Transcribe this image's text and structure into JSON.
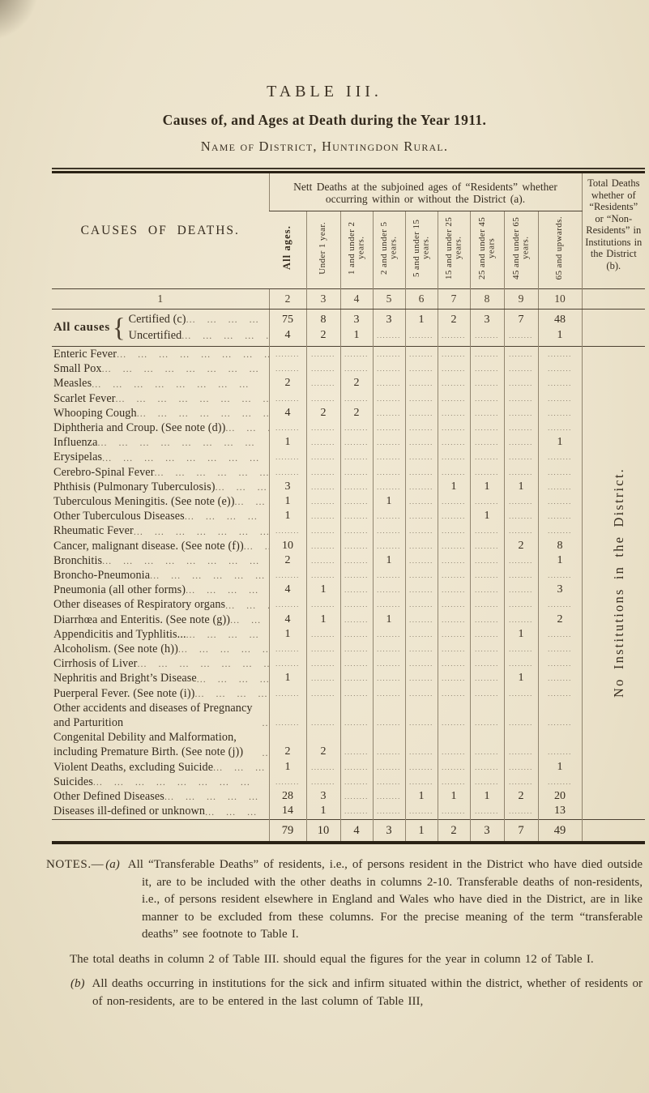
{
  "page": {
    "title": "TABLE III.",
    "subtitle": "Causes of, and Ages at Death during the Year 1911.",
    "district_line": "Name of District, Huntingdon Rural."
  },
  "table": {
    "causes_header": "CAUSES OF DEATHS.",
    "group_header": "Nett Deaths at the subjoined ages of “Residents” whether occurring within or without the District (a).",
    "total_col_header": "Total Deaths whether of “Residents” or “Non-Residents” in Institutions in the District (b).",
    "age_columns": [
      "All ages.",
      "Under 1 year.",
      "1 and under 2 years.",
      "2 and under 5 years.",
      "5 and under 15 years.",
      "15 and under 25 years.",
      "25 and under 45 years",
      "45 and under 65 years.",
      "65 and upwards."
    ],
    "column_numbers": [
      "1",
      "2",
      "3",
      "4",
      "5",
      "6",
      "7",
      "8",
      "9",
      "10"
    ],
    "empty_cell_dots": "........",
    "all_causes": {
      "label": "All causes",
      "rows": [
        {
          "label": "Certified (c)",
          "values": [
            "75",
            "8",
            "3",
            "3",
            "1",
            "2",
            "3",
            "7",
            "48"
          ]
        },
        {
          "label": "Uncertified",
          "values": [
            "4",
            "2",
            "1",
            "",
            "",
            "",
            "",
            "",
            "1"
          ]
        }
      ]
    },
    "rows": [
      {
        "label": "Enteric Fever",
        "values": [
          "",
          "",
          "",
          "",
          "",
          "",
          "",
          "",
          ""
        ]
      },
      {
        "label": "Small Pox",
        "values": [
          "",
          "",
          "",
          "",
          "",
          "",
          "",
          "",
          ""
        ]
      },
      {
        "label": "Measles",
        "values": [
          "2",
          "",
          "2",
          "",
          "",
          "",
          "",
          "",
          ""
        ]
      },
      {
        "label": "Scarlet Fever",
        "values": [
          "",
          "",
          "",
          "",
          "",
          "",
          "",
          "",
          ""
        ]
      },
      {
        "label": "Whooping Cough",
        "values": [
          "4",
          "2",
          "2",
          "",
          "",
          "",
          "",
          "",
          ""
        ]
      },
      {
        "label": "Diphtheria and Croup.  (See note (d))",
        "values": [
          "",
          "",
          "",
          "",
          "",
          "",
          "",
          "",
          ""
        ]
      },
      {
        "label": "Influenza",
        "values": [
          "1",
          "",
          "",
          "",
          "",
          "",
          "",
          "",
          "1"
        ]
      },
      {
        "label": "Erysipelas",
        "values": [
          "",
          "",
          "",
          "",
          "",
          "",
          "",
          "",
          ""
        ]
      },
      {
        "label": "Cerebro-Spinal Fever",
        "values": [
          "",
          "",
          "",
          "",
          "",
          "",
          "",
          "",
          ""
        ]
      },
      {
        "label": "Phthisis (Pulmonary Tuberculosis)",
        "values": [
          "3",
          "",
          "",
          "",
          "",
          "1",
          "1",
          "1",
          ""
        ]
      },
      {
        "label": "Tuberculous Meningitis.  (See note (e))",
        "values": [
          "1",
          "",
          "",
          "1",
          "",
          "",
          "",
          "",
          ""
        ]
      },
      {
        "label": "Other Tuberculous Diseases",
        "values": [
          "1",
          "",
          "",
          "",
          "",
          "",
          "1",
          "",
          ""
        ]
      },
      {
        "label": "Rheumatic Fever",
        "values": [
          "",
          "",
          "",
          "",
          "",
          "",
          "",
          "",
          ""
        ]
      },
      {
        "label": "Cancer, malignant disease.  (See note (f))",
        "values": [
          "10",
          "",
          "",
          "",
          "",
          "",
          "",
          "2",
          "8"
        ]
      },
      {
        "label": "Bronchitis",
        "values": [
          "2",
          "",
          "",
          "1",
          "",
          "",
          "",
          "",
          "1"
        ]
      },
      {
        "label": "Broncho-Pneumonia",
        "values": [
          "",
          "",
          "",
          "",
          "",
          "",
          "",
          "",
          ""
        ]
      },
      {
        "label": "Pneumonia (all other forms)",
        "values": [
          "4",
          "1",
          "",
          "",
          "",
          "",
          "",
          "",
          "3"
        ]
      },
      {
        "label": "Other diseases of Respiratory organs",
        "values": [
          "",
          "",
          "",
          "",
          "",
          "",
          "",
          "",
          ""
        ]
      },
      {
        "label": "Diarrhœa and Enteritis.  (See note (g))",
        "values": [
          "4",
          "1",
          "",
          "1",
          "",
          "",
          "",
          "",
          "2"
        ]
      },
      {
        "label": "Appendicitis and Typhlitis...",
        "values": [
          "1",
          "",
          "",
          "",
          "",
          "",
          "",
          "1",
          ""
        ]
      },
      {
        "label": "Alcoholism.  (See note (h))",
        "values": [
          "",
          "",
          "",
          "",
          "",
          "",
          "",
          "",
          ""
        ]
      },
      {
        "label": "Cirrhosis of Liver",
        "values": [
          "",
          "",
          "",
          "",
          "",
          "",
          "",
          "",
          ""
        ]
      },
      {
        "label": "Nephritis and Bright’s Disease",
        "values": [
          "1",
          "",
          "",
          "",
          "",
          "",
          "",
          "1",
          ""
        ]
      },
      {
        "label": "Puerperal Fever.  (See note (i))",
        "values": [
          "",
          "",
          "",
          "",
          "",
          "",
          "",
          "",
          ""
        ]
      },
      {
        "label": "Other accidents and diseases of Pregnancy and Parturition",
        "values": [
          "",
          "",
          "",
          "",
          "",
          "",
          "",
          "",
          ""
        ]
      },
      {
        "label": "Congenital Debility and Malformation, including Premature Birth.  (See note (j))",
        "values": [
          "2",
          "2",
          "",
          "",
          "",
          "",
          "",
          "",
          ""
        ]
      },
      {
        "label": "Violent Deaths, excluding Suicide",
        "values": [
          "1",
          "",
          "",
          "",
          "",
          "",
          "",
          "",
          "1"
        ]
      },
      {
        "label": "Suicides",
        "values": [
          "",
          "",
          "",
          "",
          "",
          "",
          "",
          "",
          ""
        ]
      },
      {
        "label": "Other Defined Diseases",
        "values": [
          "28",
          "3",
          "",
          "",
          "1",
          "1",
          "1",
          "2",
          "20"
        ]
      },
      {
        "label": "Diseases ill-defined or unknown",
        "values": [
          "14",
          "1",
          "",
          "",
          "",
          "",
          "",
          "",
          "13"
        ]
      }
    ],
    "totals": [
      "79",
      "10",
      "4",
      "3",
      "1",
      "2",
      "3",
      "7",
      "49"
    ],
    "side_note_vertical": "No Institutions in the District."
  },
  "notes": {
    "prefix": "NOTES.—",
    "a_label": "(a)",
    "a_text": "All “Transferable Deaths” of residents, i.e., of persons resident in the District who have died outside it, are to be included with the other deaths in columns 2-10. Transferable deaths of non-residents, i.e., of persons resident elsewhere in England and Wales who have died in the District, are in like manner to be excluded from these columns.  For the precise meaning of the term “transferable deaths” see footnote to Table I.",
    "middle": "The total deaths in column 2 of Table III. should equal the figures for the year in column 12 of Table I.",
    "b_label": "(b)",
    "b_text": "All deaths occurring in institutions for the sick and infirm situated within the district, whether of residents or of non-residents, are to be entered in the last column of Table III,"
  }
}
